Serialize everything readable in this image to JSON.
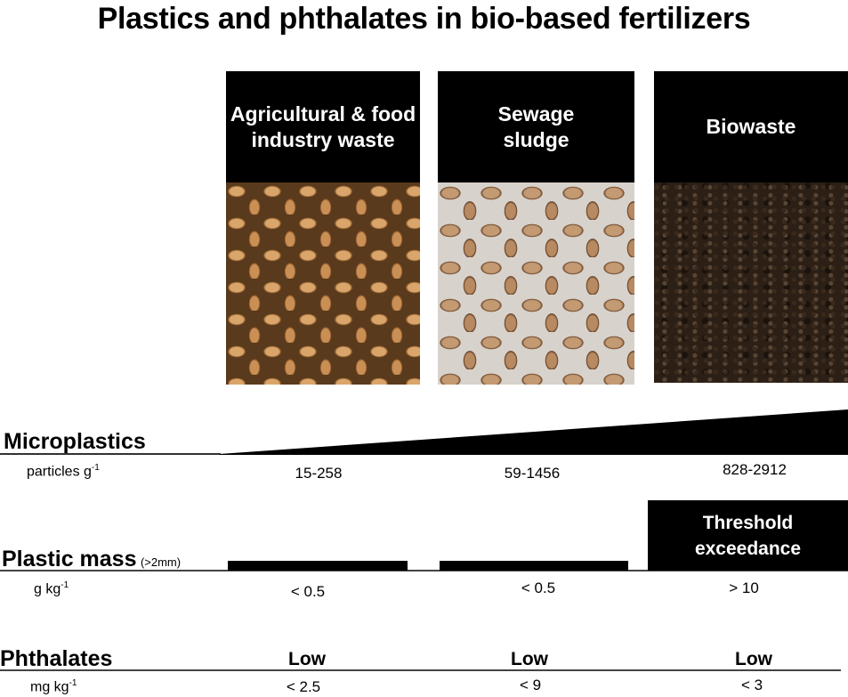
{
  "title": "Plastics and phthalates in bio-based fertilizers",
  "panels": [
    {
      "label": "Agricultural & food industry waste"
    },
    {
      "label": "Sewage sludge"
    },
    {
      "label": "Biowaste"
    }
  ],
  "microplastics": {
    "label": "Microplastics",
    "unit": "particles g",
    "unit_exp": "-1",
    "values": [
      "15-258",
      "59-1456",
      "828-2912"
    ]
  },
  "plastic_mass": {
    "label": "Plastic mass",
    "qualifier": "(>2mm)",
    "unit": "g kg",
    "unit_exp": "-1",
    "values": [
      "< 0.5",
      "< 0.5",
      "> 10"
    ],
    "threshold_label": "Threshold exceedance"
  },
  "phthalates": {
    "label": "Phthalates",
    "unit": "mg kg",
    "unit_exp": "-1",
    "levels": [
      "Low",
      "Low",
      "Low"
    ],
    "values": [
      "< 2.5",
      "< 9",
      "< 3"
    ]
  }
}
